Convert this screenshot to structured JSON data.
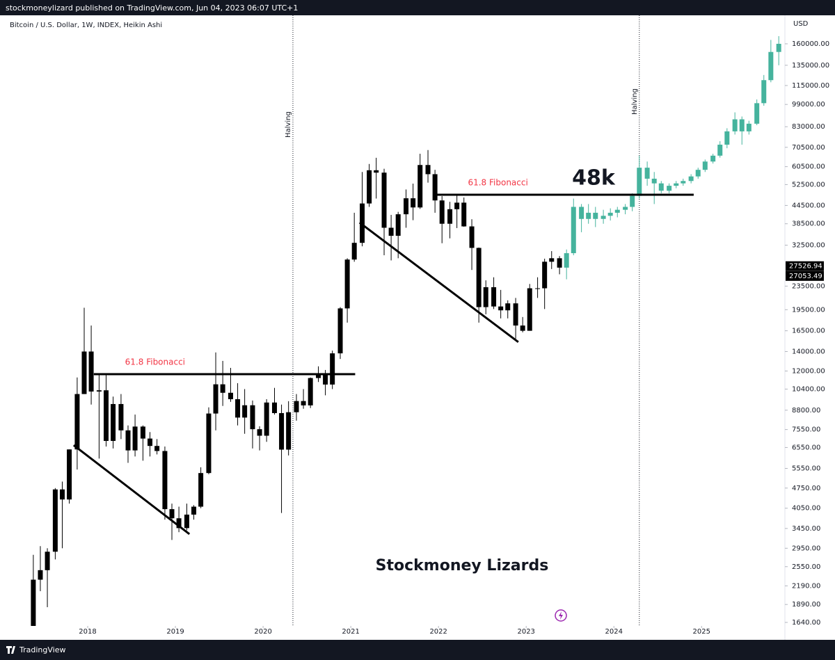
{
  "header": {
    "text": "stockmoneylizard published on TradingView.com, Jun 04, 2023 06:07 UTC+1"
  },
  "footer": {
    "brand": "TradingView"
  },
  "chart_data": {
    "type": "candlestick",
    "title": "Bitcoin / U.S. Dollar, 1W, INDEX, Heikin Ashi",
    "y_unit": "USD",
    "log_scale": true,
    "grid": false,
    "xlim": [
      2017.0,
      2025.95
    ],
    "xticks": [
      2018,
      2019,
      2020,
      2021,
      2022,
      2023,
      2024,
      2025
    ],
    "ylim": [
      1595,
      200500
    ],
    "yticks": [
      {
        "value": 160000,
        "label": "160000.00"
      },
      {
        "value": 135000,
        "label": "135000.00"
      },
      {
        "value": 115000,
        "label": "115000.00"
      },
      {
        "value": 99000,
        "label": "99000.00"
      },
      {
        "value": 83000,
        "label": "83000.00"
      },
      {
        "value": 70500,
        "label": "70500.00"
      },
      {
        "value": 60500,
        "label": "60500.00"
      },
      {
        "value": 52500,
        "label": "52500.00"
      },
      {
        "value": 44500,
        "label": "44500.00"
      },
      {
        "value": 38500,
        "label": "38500.00"
      },
      {
        "value": 32500,
        "label": "32500.00"
      },
      {
        "value": 23500,
        "label": "23500.00"
      },
      {
        "value": 19500,
        "label": "19500.00"
      },
      {
        "value": 16500,
        "label": "16500.00"
      },
      {
        "value": 14000,
        "label": "14000.00"
      },
      {
        "value": 12000,
        "label": "12000.00"
      },
      {
        "value": 10400,
        "label": "10400.00"
      },
      {
        "value": 8800,
        "label": "8800.00"
      },
      {
        "value": 7550,
        "label": "7550.00"
      },
      {
        "value": 6550,
        "label": "6550.00"
      },
      {
        "value": 5550,
        "label": "5550.00"
      },
      {
        "value": 4750,
        "label": "4750.00"
      },
      {
        "value": 4050,
        "label": "4050.00"
      },
      {
        "value": 3450,
        "label": "3450.00"
      },
      {
        "value": 2950,
        "label": "2950.00"
      },
      {
        "value": 2550,
        "label": "2550.00"
      },
      {
        "value": 2190,
        "label": "2190.00"
      },
      {
        "value": 1890,
        "label": "1890.00"
      },
      {
        "value": 1640,
        "label": "1640.00"
      }
    ],
    "price_labels": [
      27526.94,
      27053.49
    ],
    "series": [
      {
        "color": "#000000",
        "x": [
          2017.38,
          2017.46,
          2017.54,
          2017.63,
          2017.71,
          2017.79,
          2017.88,
          2017.96,
          2018.04,
          2018.13,
          2018.21,
          2018.29,
          2018.38,
          2018.46,
          2018.54,
          2018.63,
          2018.71,
          2018.79,
          2018.88,
          2018.96,
          2019.04,
          2019.13,
          2019.21,
          2019.29,
          2019.38,
          2019.46,
          2019.54,
          2019.63,
          2019.71,
          2019.79,
          2019.88,
          2019.96,
          2020.04,
          2020.13,
          2020.21,
          2020.29,
          2020.38,
          2020.46,
          2020.54,
          2020.63,
          2020.71,
          2020.79,
          2020.88,
          2020.96,
          2021.04,
          2021.13,
          2021.21,
          2021.29,
          2021.38,
          2021.46,
          2021.54,
          2021.63,
          2021.71,
          2021.79,
          2021.88,
          2021.96,
          2022.04,
          2022.13,
          2022.21,
          2022.29,
          2022.38,
          2022.46,
          2022.54,
          2022.63,
          2022.71,
          2022.79,
          2022.88,
          2022.96,
          2023.04,
          2023.13,
          2023.21,
          2023.29,
          2023.38
        ],
        "ohlc": [
          [
            1400,
            2800,
            1350,
            2300
          ],
          [
            2300,
            3000,
            2100,
            2480
          ],
          [
            2480,
            2950,
            1850,
            2870
          ],
          [
            2870,
            4750,
            2700,
            4700
          ],
          [
            4700,
            5000,
            2950,
            4340
          ],
          [
            4340,
            6450,
            4200,
            6450
          ],
          [
            6450,
            11400,
            5500,
            10000
          ],
          [
            10000,
            19800,
            10000,
            14000
          ],
          [
            14000,
            17200,
            9200,
            10200
          ],
          [
            10200,
            11800,
            6000,
            10300
          ],
          [
            10300,
            11700,
            6600,
            6900
          ],
          [
            6900,
            9800,
            6500,
            9240
          ],
          [
            9240,
            10000,
            7000,
            7500
          ],
          [
            7500,
            7800,
            5800,
            6400
          ],
          [
            6400,
            8500,
            6100,
            7730
          ],
          [
            7730,
            7800,
            5900,
            7030
          ],
          [
            7030,
            7400,
            6100,
            6630
          ],
          [
            6630,
            7000,
            6200,
            6370
          ],
          [
            6370,
            6600,
            3700,
            4020
          ],
          [
            4020,
            4200,
            3150,
            3740
          ],
          [
            3740,
            4100,
            3350,
            3460
          ],
          [
            3460,
            4200,
            3400,
            3850
          ],
          [
            3850,
            4150,
            3700,
            4100
          ],
          [
            4100,
            5600,
            4050,
            5350
          ],
          [
            5350,
            9000,
            5300,
            8570
          ],
          [
            8570,
            13900,
            7500,
            10800
          ],
          [
            10800,
            13000,
            9100,
            10100
          ],
          [
            10100,
            12300,
            9400,
            9600
          ],
          [
            9600,
            10900,
            7800,
            8300
          ],
          [
            8300,
            10400,
            7300,
            9150
          ],
          [
            9150,
            9500,
            6500,
            7570
          ],
          [
            7570,
            7750,
            6400,
            7190
          ],
          [
            7190,
            9600,
            6850,
            9350
          ],
          [
            9350,
            10500,
            8500,
            8600
          ],
          [
            8600,
            9200,
            3900,
            6440
          ],
          [
            6440,
            9450,
            6150,
            8660
          ],
          [
            8660,
            10000,
            8100,
            9460
          ],
          [
            9460,
            10400,
            8900,
            9140
          ],
          [
            9140,
            11400,
            8950,
            11350
          ],
          [
            11350,
            12450,
            11000,
            11680
          ],
          [
            11680,
            12100,
            9900,
            10780
          ],
          [
            10780,
            14100,
            10400,
            13800
          ],
          [
            13800,
            19900,
            13200,
            19700
          ],
          [
            19700,
            29300,
            17600,
            29000
          ],
          [
            29000,
            42000,
            28500,
            33100
          ],
          [
            33100,
            58000,
            32200,
            45200
          ],
          [
            45200,
            61800,
            44000,
            58800
          ],
          [
            58800,
            64900,
            47000,
            57700
          ],
          [
            57700,
            59500,
            30000,
            37300
          ],
          [
            37300,
            41300,
            28800,
            35000
          ],
          [
            35000,
            42300,
            29300,
            41500
          ],
          [
            41500,
            50500,
            37300,
            47100
          ],
          [
            47100,
            52900,
            39600,
            43800
          ],
          [
            43800,
            67000,
            43300,
            61300
          ],
          [
            61300,
            69000,
            53300,
            57000
          ],
          [
            57000,
            59000,
            42000,
            46300
          ],
          [
            46300,
            47900,
            33000,
            38500
          ],
          [
            38500,
            45800,
            34300,
            43200
          ],
          [
            43200,
            48200,
            37200,
            45500
          ],
          [
            45500,
            47400,
            37600,
            37700
          ],
          [
            37700,
            39900,
            26700,
            31800
          ],
          [
            31800,
            31900,
            17600,
            19900
          ],
          [
            19900,
            24600,
            18800,
            23300
          ],
          [
            23300,
            25200,
            19600,
            20000
          ],
          [
            20000,
            22800,
            18200,
            19400
          ],
          [
            19400,
            21000,
            18200,
            20500
          ],
          [
            20500,
            21400,
            15500,
            17200
          ],
          [
            17200,
            18400,
            16300,
            16500
          ],
          [
            16500,
            23900,
            16500,
            23100
          ],
          [
            23100,
            25200,
            21400,
            23100
          ],
          [
            23100,
            29200,
            19600,
            28500
          ],
          [
            28500,
            31000,
            26900,
            29300
          ],
          [
            29300,
            29800,
            25800,
            27200
          ]
        ]
      },
      {
        "color": "#45b39d",
        "x": [
          2023.46,
          2023.54,
          2023.63,
          2023.71,
          2023.79,
          2023.88,
          2023.96,
          2024.04,
          2024.13,
          2024.21,
          2024.29,
          2024.38,
          2024.46,
          2024.54,
          2024.63,
          2024.71,
          2024.79,
          2024.88,
          2024.96,
          2025.04,
          2025.13,
          2025.21,
          2025.29,
          2025.38,
          2025.46,
          2025.54,
          2025.63,
          2025.71,
          2025.79,
          2025.88
        ],
        "ohlc": [
          [
            27200,
            31400,
            24800,
            30500
          ],
          [
            30500,
            47000,
            30000,
            44000
          ],
          [
            44000,
            45000,
            36000,
            40000
          ],
          [
            40000,
            45000,
            38500,
            42000
          ],
          [
            42000,
            44000,
            37500,
            40000
          ],
          [
            40000,
            43000,
            38500,
            41000
          ],
          [
            41000,
            43500,
            39500,
            42000
          ],
          [
            42000,
            44000,
            40500,
            43000
          ],
          [
            43000,
            45000,
            41500,
            44000
          ],
          [
            44000,
            49000,
            42500,
            48000
          ],
          [
            48000,
            66000,
            47000,
            60000
          ],
          [
            60000,
            63000,
            52000,
            55000
          ],
          [
            55000,
            58000,
            45000,
            53000
          ],
          [
            53000,
            54000,
            49000,
            50000
          ],
          [
            50000,
            53000,
            49000,
            52000
          ],
          [
            52000,
            54000,
            51000,
            53000
          ],
          [
            53000,
            55000,
            52000,
            54000
          ],
          [
            54000,
            57000,
            53000,
            56000
          ],
          [
            56000,
            60000,
            55000,
            59000
          ],
          [
            59000,
            64000,
            58000,
            63000
          ],
          [
            63000,
            67000,
            62000,
            66000
          ],
          [
            66000,
            74000,
            65000,
            72000
          ],
          [
            72000,
            82000,
            70000,
            80000
          ],
          [
            80000,
            93000,
            78000,
            88000
          ],
          [
            88000,
            90000,
            72000,
            80000
          ],
          [
            80000,
            87000,
            78000,
            85000
          ],
          [
            85000,
            103000,
            84000,
            100000
          ],
          [
            100000,
            125000,
            98000,
            120000
          ],
          [
            120000,
            165000,
            118000,
            150000
          ],
          [
            150000,
            170000,
            135000,
            160000
          ]
        ]
      }
    ],
    "halvings": [
      {
        "text": "Halving",
        "x": 2020.34
      },
      {
        "text": "Halving",
        "x": 2024.29
      }
    ],
    "lines": [
      {
        "x": [
          2017.84,
          2019.16
        ],
        "y": [
          6670,
          3300
        ]
      },
      {
        "x": [
          2018.07,
          2021.05
        ],
        "y": [
          11700,
          11700
        ],
        "label": "61.8 Fibonacci"
      },
      {
        "x": [
          2021.1,
          2022.91
        ],
        "y": [
          38850,
          15090
        ]
      },
      {
        "x": [
          2021.98,
          2024.91
        ],
        "y": [
          48450,
          48450
        ],
        "label": "61.8 Fibonacci"
      }
    ],
    "target_label": "48k",
    "watermark": "Stockmoney Lizards"
  }
}
